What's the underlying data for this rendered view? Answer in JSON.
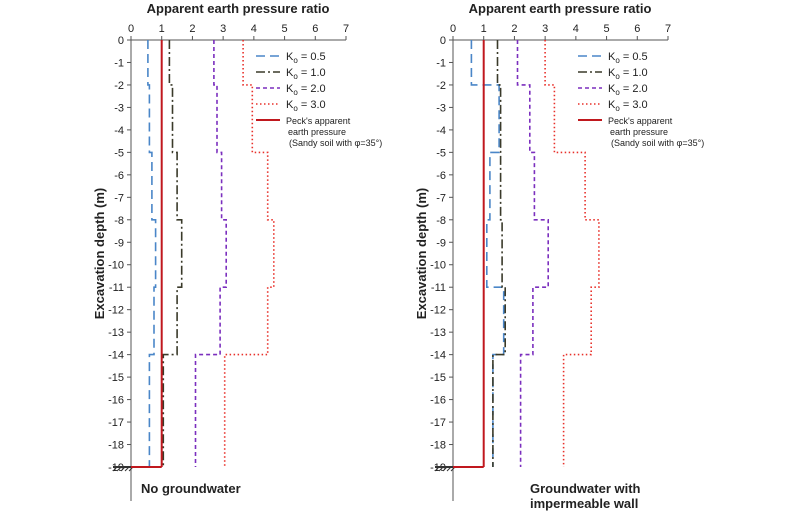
{
  "chart_data": [
    {
      "type": "line",
      "title": "Apparent earth pressure ratio",
      "ylabel": "Excavation depth (m)",
      "caption_lines": [
        "No groundwater"
      ],
      "xlim": [
        0,
        7
      ],
      "ylim": [
        -19,
        0
      ],
      "x_ticks": [
        "0",
        "1",
        "2",
        "3",
        "4",
        "5",
        "6",
        "7"
      ],
      "y_ticks": [
        "0",
        "-1",
        "-2",
        "-3",
        "-4",
        "-5",
        "-6",
        "-7",
        "-8",
        "-9",
        "-10",
        "-11",
        "-12",
        "-13",
        "-14",
        "-15",
        "-16",
        "-17",
        "-18",
        "-19"
      ],
      "series": [
        {
          "name": "Ko = 0.5",
          "name_base": "K",
          "name_sub": "o",
          "name_rest": " = 0.5",
          "color": "#4a86c8",
          "dash": "9,5",
          "points": [
            [
              0.55,
              0
            ],
            [
              0.55,
              -2
            ],
            [
              0.6,
              -2
            ],
            [
              0.6,
              -5
            ],
            [
              0.68,
              -5
            ],
            [
              0.68,
              -8
            ],
            [
              0.8,
              -8
            ],
            [
              0.8,
              -11
            ],
            [
              0.75,
              -11
            ],
            [
              0.75,
              -14
            ],
            [
              0.6,
              -14
            ],
            [
              0.6,
              -19
            ]
          ]
        },
        {
          "name": "Ko = 1.0",
          "name_base": "K",
          "name_sub": "o",
          "name_rest": " = 1.0",
          "color": "#3a3a2a",
          "dash": "9,3,2,3",
          "points": [
            [
              1.25,
              0
            ],
            [
              1.25,
              -2
            ],
            [
              1.35,
              -2
            ],
            [
              1.35,
              -5
            ],
            [
              1.5,
              -5
            ],
            [
              1.5,
              -8
            ],
            [
              1.65,
              -8
            ],
            [
              1.65,
              -11
            ],
            [
              1.5,
              -11
            ],
            [
              1.5,
              -14
            ],
            [
              1.05,
              -14
            ],
            [
              1.05,
              -19
            ]
          ]
        },
        {
          "name": "Ko = 2.0",
          "name_base": "K",
          "name_sub": "o",
          "name_rest": " = 2.0",
          "color": "#7b2fbe",
          "dash": "4,3",
          "points": [
            [
              2.7,
              0
            ],
            [
              2.7,
              -2
            ],
            [
              2.8,
              -2
            ],
            [
              2.8,
              -5
            ],
            [
              2.95,
              -5
            ],
            [
              2.95,
              -8
            ],
            [
              3.1,
              -8
            ],
            [
              3.1,
              -11
            ],
            [
              2.9,
              -11
            ],
            [
              2.9,
              -14
            ],
            [
              2.1,
              -14
            ],
            [
              2.1,
              -19
            ]
          ]
        },
        {
          "name": "Ko = 3.0",
          "name_base": "K",
          "name_sub": "o",
          "name_rest": " = 3.0",
          "color": "#e8302a",
          "dash": "1.5,2.5",
          "points": [
            [
              3.65,
              0
            ],
            [
              3.65,
              -2
            ],
            [
              3.95,
              -2
            ],
            [
              3.95,
              -5
            ],
            [
              4.45,
              -5
            ],
            [
              4.45,
              -8
            ],
            [
              4.65,
              -8
            ],
            [
              4.65,
              -11
            ],
            [
              4.45,
              -11
            ],
            [
              4.45,
              -14
            ],
            [
              3.05,
              -14
            ],
            [
              3.05,
              -19
            ]
          ]
        },
        {
          "name": "Peck's apparent earth pressure",
          "name_line1": "Peck's apparent",
          "name_line2": "earth pressure",
          "color": "#c0181e",
          "dash": "",
          "points": [
            [
              1.0,
              0
            ],
            [
              1.0,
              -19
            ]
          ]
        }
      ],
      "legend_note": "(Sandy soil with φ=35°)"
    },
    {
      "type": "line",
      "title": "Apparent earth pressure ratio",
      "ylabel": "Excavation depth (m)",
      "caption_lines": [
        "Groundwater with",
        "impermeable wall"
      ],
      "xlim": [
        0,
        7
      ],
      "ylim": [
        -19,
        0
      ],
      "x_ticks": [
        "0",
        "1",
        "2",
        "3",
        "4",
        "5",
        "6",
        "7"
      ],
      "y_ticks": [
        "0",
        "-1",
        "-2",
        "-3",
        "-4",
        "-5",
        "-6",
        "-7",
        "-8",
        "-9",
        "-10",
        "-11",
        "-12",
        "-13",
        "-14",
        "-15",
        "-16",
        "-17",
        "-18",
        "-19"
      ],
      "series": [
        {
          "name": "Ko = 0.5",
          "name_base": "K",
          "name_sub": "o",
          "name_rest": " = 0.5",
          "color": "#4a86c8",
          "dash": "9,5",
          "points": [
            [
              0.6,
              0
            ],
            [
              0.6,
              -2
            ],
            [
              1.5,
              -2
            ],
            [
              1.5,
              -5
            ],
            [
              1.2,
              -5
            ],
            [
              1.2,
              -8
            ],
            [
              1.1,
              -8
            ],
            [
              1.1,
              -11
            ],
            [
              1.65,
              -11
            ],
            [
              1.65,
              -14
            ],
            [
              1.3,
              -14
            ],
            [
              1.3,
              -19
            ]
          ]
        },
        {
          "name": "Ko = 1.0",
          "name_base": "K",
          "name_sub": "o",
          "name_rest": " = 1.0",
          "color": "#3a3a2a",
          "dash": "9,3,2,3",
          "points": [
            [
              1.45,
              0
            ],
            [
              1.45,
              -2
            ],
            [
              1.55,
              -2
            ],
            [
              1.55,
              -5
            ],
            [
              1.55,
              -8
            ],
            [
              1.6,
              -8
            ],
            [
              1.6,
              -11
            ],
            [
              1.7,
              -11
            ],
            [
              1.7,
              -14
            ],
            [
              1.3,
              -14
            ],
            [
              1.3,
              -19
            ]
          ]
        },
        {
          "name": "Ko = 2.0",
          "name_base": "K",
          "name_sub": "o",
          "name_rest": " = 2.0",
          "color": "#7b2fbe",
          "dash": "4,3",
          "points": [
            [
              2.1,
              0
            ],
            [
              2.1,
              -2
            ],
            [
              2.5,
              -2
            ],
            [
              2.5,
              -5
            ],
            [
              2.65,
              -5
            ],
            [
              2.65,
              -8
            ],
            [
              3.1,
              -8
            ],
            [
              3.1,
              -11
            ],
            [
              2.6,
              -11
            ],
            [
              2.6,
              -14
            ],
            [
              2.2,
              -14
            ],
            [
              2.2,
              -19
            ]
          ]
        },
        {
          "name": "Ko = 3.0",
          "name_base": "K",
          "name_sub": "o",
          "name_rest": " = 3.0",
          "color": "#e8302a",
          "dash": "1.5,2.5",
          "points": [
            [
              3.0,
              0
            ],
            [
              3.0,
              -2
            ],
            [
              3.3,
              -2
            ],
            [
              3.3,
              -5
            ],
            [
              4.3,
              -5
            ],
            [
              4.3,
              -8
            ],
            [
              4.75,
              -8
            ],
            [
              4.75,
              -11
            ],
            [
              4.5,
              -11
            ],
            [
              4.5,
              -14
            ],
            [
              3.6,
              -14
            ],
            [
              3.6,
              -19
            ]
          ]
        },
        {
          "name": "Peck's apparent earth pressure",
          "name_line1": "Peck's apparent",
          "name_line2": "earth pressure",
          "color": "#c0181e",
          "dash": "",
          "points": [
            [
              1.0,
              0
            ],
            [
              1.0,
              -19
            ]
          ]
        }
      ],
      "legend_note": "(Sandy soil with φ=35°)"
    }
  ]
}
